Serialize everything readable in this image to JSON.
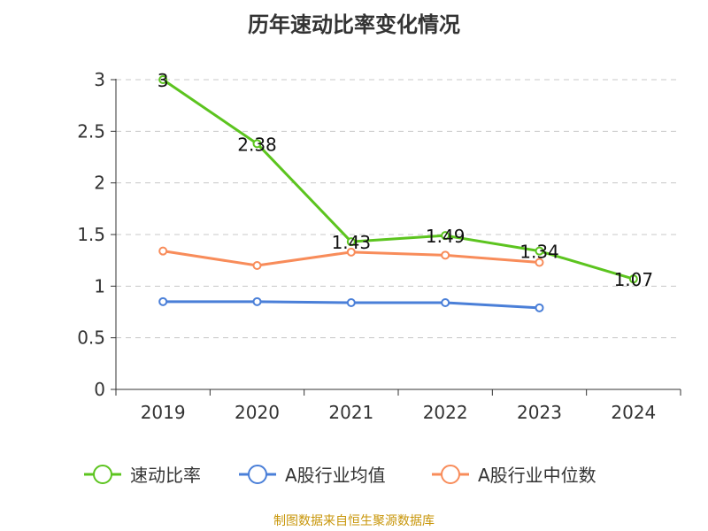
{
  "title": "历年速动比率变化情况",
  "source_note": "制图数据来自恒生聚源数据库",
  "chart_data": {
    "type": "line",
    "title": "历年速动比率变化情况",
    "categories": [
      "2019",
      "2020",
      "2021",
      "2022",
      "2023",
      "2024"
    ],
    "ylim": [
      0,
      3
    ],
    "yticks": [
      0,
      0.5,
      1,
      1.5,
      2,
      2.5,
      3
    ],
    "ytick_labels": [
      "0",
      "0.5",
      "1",
      "1.5",
      "2",
      "2.5",
      "3"
    ],
    "grid": true,
    "legend_position": "bottom",
    "series": [
      {
        "name": "速动比率",
        "color": "#5cc41f",
        "values": [
          3,
          2.38,
          1.43,
          1.49,
          1.34,
          1.07
        ],
        "labels": [
          "3",
          "2.38",
          "1.43",
          "1.49",
          "1.34",
          "1.07"
        ]
      },
      {
        "name": "A股行业均值",
        "color": "#4a7fd8",
        "values": [
          0.85,
          0.85,
          0.84,
          0.84,
          0.79,
          null
        ]
      },
      {
        "name": "A股行业中位数",
        "color": "#f88c5a",
        "values": [
          1.34,
          1.2,
          1.33,
          1.3,
          1.23,
          null
        ]
      }
    ]
  }
}
